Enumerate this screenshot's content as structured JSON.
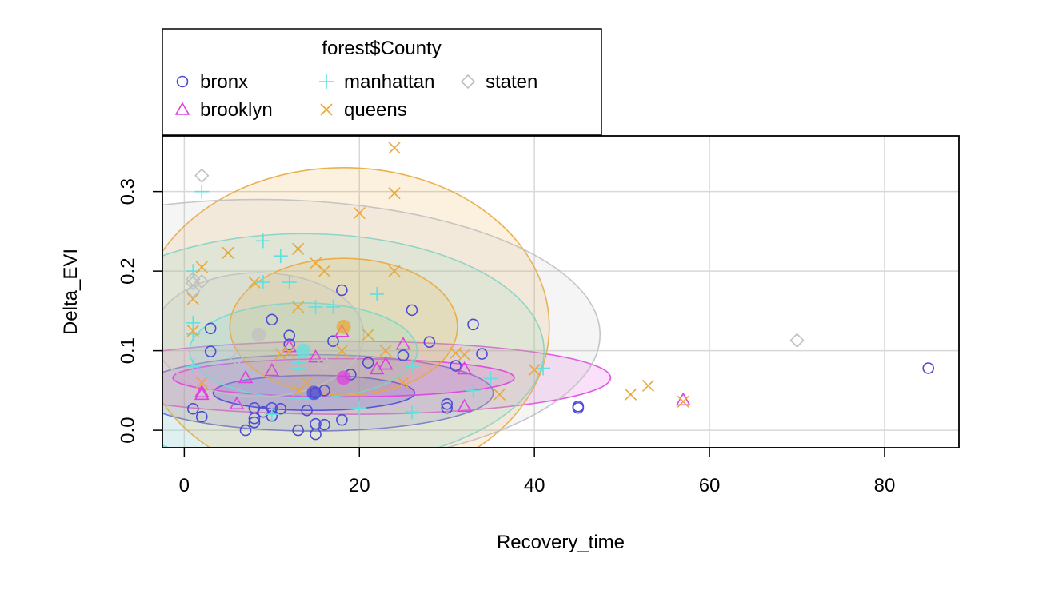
{
  "chart_data": {
    "type": "scatter",
    "xlabel": "Recovery_time",
    "ylabel": "Delta_EVI",
    "xlim": [
      -2.5,
      88.5
    ],
    "ylim": [
      -0.022,
      0.37
    ],
    "x_ticks": [
      0,
      20,
      40,
      60,
      80
    ],
    "y_ticks": [
      0.0,
      0.1,
      0.2,
      0.3
    ],
    "grid": true,
    "legend": {
      "title": "forest$County",
      "placement": "top-left, above plot",
      "columns": 3
    },
    "series": [
      {
        "name": "bronx",
        "color": "#4B4BD6",
        "marker": "circle",
        "centroid": [
          14.8,
          0.047
        ],
        "ellipses": [
          {
            "cx": 14.8,
            "cy": 0.047,
            "rx": 11.5,
            "ry": 0.022,
            "rot": 0
          },
          {
            "cx": 14.8,
            "cy": 0.047,
            "rx": 20.5,
            "ry": 0.048,
            "rot": 0
          }
        ],
        "points": [
          [
            1,
            0.027
          ],
          [
            2,
            0.017
          ],
          [
            3,
            0.128
          ],
          [
            3,
            0.099
          ],
          [
            7,
            0.0
          ],
          [
            8,
            0.015
          ],
          [
            8,
            0.01
          ],
          [
            8,
            0.028
          ],
          [
            9,
            0.023
          ],
          [
            10,
            0.028
          ],
          [
            10,
            0.018
          ],
          [
            10,
            0.139
          ],
          [
            11,
            0.027
          ],
          [
            12,
            0.108
          ],
          [
            12,
            0.119
          ],
          [
            13,
            0.0
          ],
          [
            14,
            0.025
          ],
          [
            15,
            0.047
          ],
          [
            15,
            0.008
          ],
          [
            15,
            -0.005
          ],
          [
            16,
            0.007
          ],
          [
            16,
            0.05
          ],
          [
            17,
            0.112
          ],
          [
            18,
            0.176
          ],
          [
            18,
            0.013
          ],
          [
            19,
            0.07
          ],
          [
            21,
            0.085
          ],
          [
            25,
            0.094
          ],
          [
            26,
            0.151
          ],
          [
            28,
            0.111
          ],
          [
            30,
            0.033
          ],
          [
            30,
            0.028
          ],
          [
            31,
            0.081
          ],
          [
            33,
            0.133
          ],
          [
            34,
            0.096
          ],
          [
            45,
            0.03
          ],
          [
            45,
            0.028
          ],
          [
            85,
            0.078
          ]
        ]
      },
      {
        "name": "brooklyn",
        "color": "#E040E0",
        "marker": "triangle",
        "centroid": [
          18.2,
          0.066
        ],
        "ellipses": [
          {
            "cx": 18.2,
            "cy": 0.066,
            "rx": 19.5,
            "ry": 0.024,
            "rot": 0
          },
          {
            "cx": 18.2,
            "cy": 0.066,
            "rx": 30.5,
            "ry": 0.046,
            "rot": 0
          }
        ],
        "points": [
          [
            2,
            0.045
          ],
          [
            2,
            0.048
          ],
          [
            6,
            0.033
          ],
          [
            7,
            0.066
          ],
          [
            10,
            0.075
          ],
          [
            12,
            0.105
          ],
          [
            15,
            0.092
          ],
          [
            18,
            0.124
          ],
          [
            22,
            0.077
          ],
          [
            23,
            0.083
          ],
          [
            25,
            0.108
          ],
          [
            32,
            0.077
          ],
          [
            32,
            0.03
          ],
          [
            57,
            0.038
          ]
        ]
      },
      {
        "name": "manhattan",
        "color": "#60E0E0",
        "marker": "plus",
        "centroid": [
          13.6,
          0.1
        ],
        "ellipses": [
          {
            "cx": 13.6,
            "cy": 0.1,
            "rx": 13.0,
            "ry": 0.06,
            "rot": 0
          },
          {
            "cx": 13.6,
            "cy": 0.1,
            "rx": 27.5,
            "ry": 0.147,
            "rot": 0
          }
        ],
        "points": [
          [
            1,
            0.2
          ],
          [
            1,
            0.135
          ],
          [
            1,
            0.121
          ],
          [
            1,
            0.08
          ],
          [
            2,
            0.3
          ],
          [
            9,
            0.238
          ],
          [
            9,
            0.186
          ],
          [
            10,
            0.02
          ],
          [
            11,
            0.219
          ],
          [
            12,
            0.186
          ],
          [
            13,
            0.078
          ],
          [
            13,
            0.085
          ],
          [
            15,
            0.155
          ],
          [
            17,
            0.155
          ],
          [
            20,
            0.028
          ],
          [
            22,
            0.171
          ],
          [
            26,
            0.08
          ],
          [
            26,
            0.023
          ],
          [
            33,
            0.05
          ],
          [
            35,
            0.065
          ],
          [
            41,
            0.078
          ]
        ]
      },
      {
        "name": "queens",
        "color": "#EAA73A",
        "marker": "x",
        "centroid": [
          18.2,
          0.13
        ],
        "ellipses": [
          {
            "cx": 18.2,
            "cy": 0.13,
            "rx": 13.0,
            "ry": 0.086,
            "rot": 0
          },
          {
            "cx": 18.2,
            "cy": 0.13,
            "rx": 23.5,
            "ry": 0.2,
            "rot": 0
          }
        ],
        "points": [
          [
            1,
            0.165
          ],
          [
            1,
            0.125
          ],
          [
            2,
            0.205
          ],
          [
            2,
            0.06
          ],
          [
            5,
            0.223
          ],
          [
            8,
            0.186
          ],
          [
            11,
            0.096
          ],
          [
            12,
            0.098
          ],
          [
            13,
            0.155
          ],
          [
            13,
            0.228
          ],
          [
            13,
            0.05
          ],
          [
            14,
            0.06
          ],
          [
            15,
            0.21
          ],
          [
            16,
            0.2
          ],
          [
            18,
            0.1
          ],
          [
            20,
            0.273
          ],
          [
            21,
            0.12
          ],
          [
            23,
            0.1
          ],
          [
            24,
            0.298
          ],
          [
            24,
            0.355
          ],
          [
            24,
            0.2
          ],
          [
            25,
            0.06
          ],
          [
            31,
            0.097
          ],
          [
            32,
            0.095
          ],
          [
            36,
            0.045
          ],
          [
            40,
            0.076
          ],
          [
            51,
            0.045
          ],
          [
            53,
            0.056
          ],
          [
            57,
            0.036
          ]
        ]
      },
      {
        "name": "staten",
        "color": "#C0C0C0",
        "marker": "diamond",
        "centroid": [
          8.5,
          0.12
        ],
        "ellipses": [
          {
            "cx": 8.5,
            "cy": 0.12,
            "rx": 12.0,
            "ry": 0.078,
            "rot": 0
          },
          {
            "cx": 8.5,
            "cy": 0.12,
            "rx": 39.0,
            "ry": 0.17,
            "rot": 0
          }
        ],
        "points": [
          [
            1,
            0.19
          ],
          [
            1,
            0.185
          ],
          [
            1,
            0.175
          ],
          [
            2,
            0.32
          ],
          [
            2,
            0.187
          ],
          [
            6,
            0.09
          ],
          [
            16,
            0.085
          ],
          [
            70,
            0.113
          ]
        ]
      }
    ]
  }
}
